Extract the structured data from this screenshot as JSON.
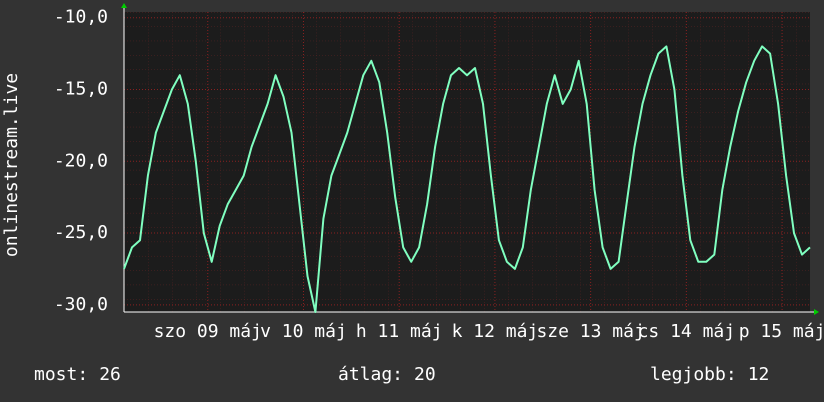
{
  "chart_data": {
    "type": "line",
    "y_axis_label": "onlinestream.live",
    "x": [
      0,
      2,
      4,
      6,
      8,
      10,
      12,
      14,
      16,
      18,
      20,
      22,
      24,
      26,
      28,
      30,
      32,
      34,
      36,
      38,
      40,
      42,
      44,
      46,
      48,
      50,
      52,
      54,
      56,
      58,
      60,
      62,
      64,
      66,
      68,
      70,
      72,
      74,
      76,
      78,
      80,
      82,
      84,
      86,
      88,
      90,
      92,
      94,
      96,
      98,
      100,
      102,
      104,
      106,
      108,
      110,
      112,
      114,
      116,
      118,
      120,
      122,
      124,
      126,
      128,
      130,
      132,
      134,
      136,
      138,
      140,
      142,
      144,
      146,
      148,
      150,
      152,
      154,
      156,
      158,
      160,
      162,
      164,
      166,
      168,
      170,
      172
    ],
    "series": [
      {
        "color": "#80ffc0",
        "values": [
          -27.5,
          -26,
          -25.5,
          -21,
          -18,
          -16.5,
          -15,
          -14,
          -16,
          -20,
          -25,
          -27,
          -24.5,
          -23,
          -22,
          -21,
          -19,
          -17.5,
          -16,
          -14,
          -15.5,
          -18,
          -23,
          -28,
          -30.5,
          -24,
          -21,
          -19.5,
          -18,
          -16,
          -14,
          -13,
          -14.5,
          -18,
          -22.5,
          -26,
          -27,
          -26,
          -23,
          -19,
          -16,
          -14,
          -13.5,
          -14,
          -13.5,
          -16,
          -21,
          -25.5,
          -27,
          -27.5,
          -26,
          -22,
          -19,
          -16,
          -14,
          -16,
          -15,
          -13,
          -16,
          -22,
          -26,
          -27.5,
          -27,
          -23,
          -19,
          -16,
          -14,
          -12.5,
          -12,
          -15,
          -21,
          -25.5,
          -27,
          -27,
          -26.5,
          -22,
          -19,
          -16.5,
          -14.5,
          -13,
          -12,
          -12.5,
          -16,
          -21,
          -25,
          -26.5,
          -26
        ]
      }
    ],
    "xlim": [
      0,
      172
    ],
    "xticks": [
      {
        "value": 21,
        "label": "szo 09 máj"
      },
      {
        "value": 45,
        "label": "v 10 máj"
      },
      {
        "value": 69,
        "label": "h 11 máj"
      },
      {
        "value": 93,
        "label": "k 12 máj"
      },
      {
        "value": 117,
        "label": "sze 13 máj"
      },
      {
        "value": 141,
        "label": "cs 14 máj"
      },
      {
        "value": 165,
        "label": "p 15 máj"
      }
    ],
    "ylim": [
      -30.5,
      -9.6
    ],
    "yticks": [
      {
        "value": -30,
        "label": "-30,0"
      },
      {
        "value": -25,
        "label": "-25,0"
      },
      {
        "value": -20,
        "label": "-20,0"
      },
      {
        "value": -15,
        "label": "-15,0"
      },
      {
        "value": -10,
        "label": "-10,0"
      }
    ],
    "grid": true,
    "legend": [
      {
        "label": "most:",
        "value": 26
      },
      {
        "label": "átlag:",
        "value": 20
      },
      {
        "label": "legjobb:",
        "value": 12
      }
    ]
  }
}
